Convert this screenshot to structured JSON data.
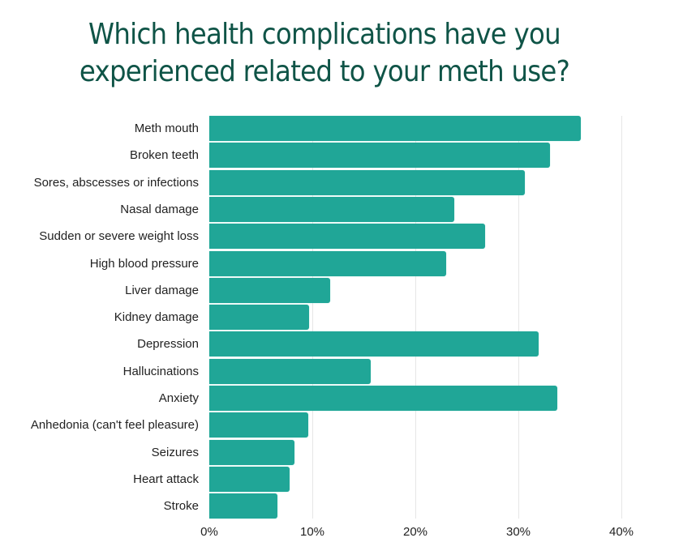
{
  "title_lines": [
    "Which health complications have you",
    "experienced related to your meth use?"
  ],
  "colors": {
    "title": "#0f5447",
    "bar": "#20a697",
    "grid": "#e6e6e6",
    "text": "#222222"
  },
  "x_ticks": [
    "0%",
    "10%",
    "20%",
    "30%",
    "40%"
  ],
  "chart_data": {
    "type": "bar",
    "orientation": "horizontal",
    "title": "Which health complications have you experienced related to your meth use?",
    "xlabel": "",
    "ylabel": "",
    "xlim": [
      0,
      40
    ],
    "x_ticks": [
      "0%",
      "10%",
      "20%",
      "30%",
      "40%"
    ],
    "grid": true,
    "legend": null,
    "categories": [
      "Meth mouth",
      "Broken teeth",
      "Sores, abscesses or infections",
      "Nasal damage",
      "Sudden or severe weight loss",
      "High blood pressure",
      "Liver damage",
      "Kidney damage",
      "Depression",
      "Hallucinations",
      "Anxiety",
      "Anhedonia (can't feel pleasure)",
      "Seizures",
      "Heart attack",
      "Stroke"
    ],
    "values": [
      36.1,
      33.1,
      30.6,
      23.8,
      26.8,
      23.0,
      11.7,
      9.7,
      32.0,
      15.7,
      33.8,
      9.6,
      8.3,
      7.8,
      6.6
    ],
    "unit": "%"
  }
}
